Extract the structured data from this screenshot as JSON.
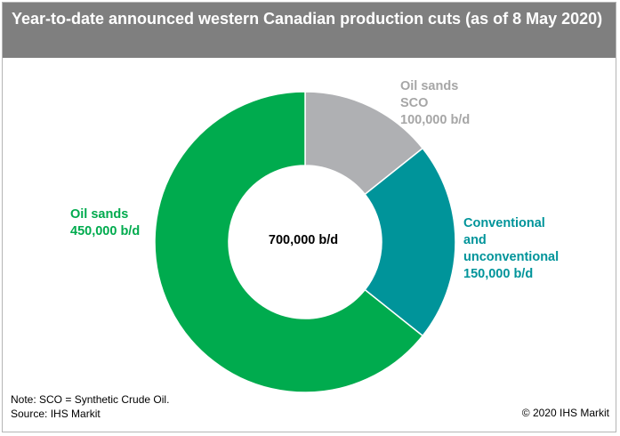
{
  "title": "Year-to-date announced western Canadian production cuts (as of 8 May 2020)",
  "chart_data": {
    "type": "pie",
    "donut": true,
    "center_label": "700,000 b/d",
    "slices": [
      {
        "name": "Oil sands SCO",
        "value": 100000,
        "value_label": "100,000 b/d",
        "color": "#afb0b3"
      },
      {
        "name": "Conventional and unconventional",
        "value": 150000,
        "value_label": "150,000 b/d",
        "color": "#00949a"
      },
      {
        "name": "Oil sands",
        "value": 450000,
        "value_label": "450,000 b/d",
        "color": "#00ab4e"
      }
    ]
  },
  "labels": {
    "sco_lines": [
      "Oil sands",
      "SCO"
    ],
    "conv_lines": [
      "Conventional",
      "and",
      "unconventional"
    ],
    "oil_sands_lines": [
      "Oil sands"
    ]
  },
  "footer": {
    "note": "Note: SCO = Synthetic Crude Oil.",
    "source": "Source: IHS Markit",
    "copyright": "© 2020 IHS Markit"
  }
}
